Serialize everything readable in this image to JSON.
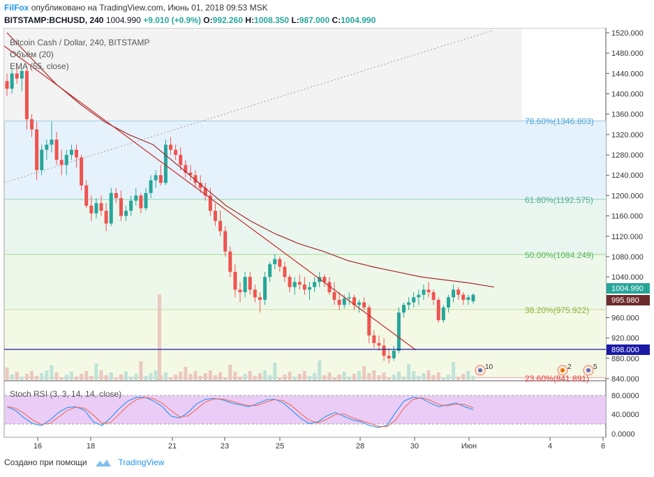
{
  "header": {
    "author": "FilFox",
    "published_text": "опубликовано на TradingView.com, Июнь 01, 2018 09:53 MSK",
    "symbol": "BITSTAMP:BCHUSD, 240",
    "last": "1004.990",
    "change": "+9.010 (+0.9%)",
    "o_label": "O:",
    "o_value": "992.260",
    "h_label": "H:",
    "h_value": "1008.350",
    "l_label": "L:",
    "l_value": "987.000",
    "c_label": "C:",
    "c_value": "1004.990"
  },
  "legend": {
    "title": "Bitcoin Cash / Dollar, 240, BITSTAMP",
    "volume": "Объём (20)",
    "ema": "EMA (55, close)"
  },
  "stoch": {
    "label": "Stoch RSI (3, 3, 14, 14, close)",
    "ticks": [
      "80.0000",
      "40.0000",
      "0.0000"
    ]
  },
  "fib_labels": [
    "78.60%(1346.803)",
    "61.80%(1192.575)",
    "50.00%(1084.249)",
    "38.20%(975.922)",
    "23.60%(841.891)"
  ],
  "price_ticks": [
    "1520.000",
    "1480.000",
    "1440.000",
    "1400.000",
    "1360.000",
    "1320.000",
    "1280.000",
    "1240.000",
    "1200.000",
    "1160.000",
    "1120.000",
    "1080.000",
    "1040.000",
    "960.000",
    "920.000",
    "880.000",
    "840.000"
  ],
  "price_badges": {
    "last": "1004.990",
    "ema": "995.980",
    "line": "898.000"
  },
  "x_ticks": [
    "16",
    "18",
    "21",
    "23",
    "25",
    "28",
    "30",
    "Июн",
    "4",
    "6"
  ],
  "event_badges": [
    "10",
    "2",
    "5"
  ],
  "footer": {
    "created": "Создано при помощи",
    "brand": "TradingView"
  },
  "colors": {
    "up": "#26a69a",
    "down": "#ef5350",
    "ema": "#a52a2a",
    "trend": "#c62828",
    "support": "#1a1aa6",
    "stoch_k": "#2196f3",
    "stoch_d": "#ef6c5a"
  },
  "chart_data": {
    "type": "candlestick",
    "title": "Bitcoin Cash / Dollar, 240, BITSTAMP",
    "symbol": "BITSTAMP:BCHUSD",
    "interval": "240",
    "ylim": [
      830,
      1530
    ],
    "fibonacci": [
      {
        "level": "78.60%",
        "price": 1346.803
      },
      {
        "level": "61.80%",
        "price": 1192.575
      },
      {
        "level": "50.00%",
        "price": 1084.249
      },
      {
        "level": "38.20%",
        "price": 975.922
      },
      {
        "level": "23.60%",
        "price": 841.891
      }
    ],
    "support_price": 898.0,
    "ema_last": 995.98,
    "last_ohlc": {
      "open": 992.26,
      "high": 1008.35,
      "low": 987.0,
      "close": 1004.99
    },
    "candles": [
      [
        1425,
        1440,
        1395,
        1410
      ],
      [
        1410,
        1450,
        1400,
        1440
      ],
      [
        1440,
        1452,
        1420,
        1430
      ],
      [
        1430,
        1450,
        1405,
        1445
      ],
      [
        1445,
        1450,
        1330,
        1350
      ],
      [
        1350,
        1360,
        1315,
        1330
      ],
      [
        1330,
        1345,
        1230,
        1250
      ],
      [
        1250,
        1300,
        1240,
        1290
      ],
      [
        1290,
        1310,
        1270,
        1300
      ],
      [
        1300,
        1345,
        1285,
        1310
      ],
      [
        1310,
        1325,
        1260,
        1270
      ],
      [
        1270,
        1290,
        1240,
        1260
      ],
      [
        1260,
        1290,
        1240,
        1280
      ],
      [
        1280,
        1300,
        1270,
        1290
      ],
      [
        1290,
        1300,
        1255,
        1275
      ],
      [
        1275,
        1280,
        1210,
        1220
      ],
      [
        1220,
        1230,
        1175,
        1180
      ],
      [
        1180,
        1200,
        1150,
        1165
      ],
      [
        1165,
        1195,
        1155,
        1185
      ],
      [
        1185,
        1200,
        1160,
        1170
      ],
      [
        1170,
        1185,
        1130,
        1145
      ],
      [
        1145,
        1215,
        1140,
        1205
      ],
      [
        1205,
        1215,
        1185,
        1195
      ],
      [
        1195,
        1210,
        1150,
        1160
      ],
      [
        1160,
        1180,
        1150,
        1170
      ],
      [
        1170,
        1200,
        1160,
        1190
      ],
      [
        1190,
        1215,
        1180,
        1200
      ],
      [
        1200,
        1205,
        1165,
        1175
      ],
      [
        1175,
        1215,
        1170,
        1205
      ],
      [
        1205,
        1240,
        1195,
        1230
      ],
      [
        1230,
        1250,
        1215,
        1240
      ],
      [
        1240,
        1260,
        1220,
        1225
      ],
      [
        1225,
        1310,
        1220,
        1300
      ],
      [
        1300,
        1315,
        1280,
        1290
      ],
      [
        1290,
        1300,
        1270,
        1280
      ],
      [
        1280,
        1295,
        1250,
        1260
      ],
      [
        1260,
        1270,
        1235,
        1245
      ],
      [
        1245,
        1260,
        1230,
        1240
      ],
      [
        1240,
        1250,
        1215,
        1225
      ],
      [
        1225,
        1240,
        1205,
        1215
      ],
      [
        1215,
        1225,
        1190,
        1200
      ],
      [
        1200,
        1215,
        1160,
        1170
      ],
      [
        1170,
        1185,
        1140,
        1150
      ],
      [
        1150,
        1170,
        1120,
        1130
      ],
      [
        1130,
        1140,
        1080,
        1090
      ],
      [
        1090,
        1100,
        1040,
        1050
      ],
      [
        1050,
        1065,
        1000,
        1015
      ],
      [
        1015,
        1030,
        990,
        1010
      ],
      [
        1010,
        1050,
        1000,
        1040
      ],
      [
        1040,
        1050,
        1005,
        1015
      ],
      [
        1015,
        1025,
        990,
        1000
      ],
      [
        1000,
        1010,
        970,
        995
      ],
      [
        995,
        1050,
        985,
        1040
      ],
      [
        1040,
        1070,
        1030,
        1065
      ],
      [
        1065,
        1085,
        1055,
        1075
      ],
      [
        1075,
        1080,
        1050,
        1060
      ],
      [
        1060,
        1070,
        1030,
        1040
      ],
      [
        1040,
        1045,
        1010,
        1020
      ],
      [
        1020,
        1040,
        1005,
        1030
      ],
      [
        1030,
        1045,
        1015,
        1025
      ],
      [
        1025,
        1040,
        1005,
        1015
      ],
      [
        1015,
        1030,
        995,
        1020
      ],
      [
        1020,
        1040,
        1010,
        1030
      ],
      [
        1030,
        1050,
        1020,
        1040
      ],
      [
        1040,
        1045,
        1020,
        1030
      ],
      [
        1030,
        1040,
        1005,
        1010
      ],
      [
        1010,
        1030,
        985,
        995
      ],
      [
        995,
        1010,
        975,
        985
      ],
      [
        985,
        1005,
        978,
        998
      ],
      [
        998,
        1010,
        985,
        1000
      ],
      [
        1000,
        1005,
        975,
        985
      ],
      [
        985,
        995,
        970,
        990
      ],
      [
        990,
        1000,
        975,
        980
      ],
      [
        980,
        985,
        910,
        925
      ],
      [
        925,
        935,
        900,
        910
      ],
      [
        910,
        925,
        895,
        905
      ],
      [
        905,
        920,
        875,
        885
      ],
      [
        885,
        900,
        870,
        880
      ],
      [
        880,
        905,
        875,
        895
      ],
      [
        895,
        980,
        890,
        970
      ],
      [
        970,
        990,
        960,
        985
      ],
      [
        985,
        1000,
        975,
        990
      ],
      [
        990,
        1010,
        980,
        1000
      ],
      [
        1000,
        1015,
        985,
        1005
      ],
      [
        1005,
        1025,
        995,
        1015
      ],
      [
        1015,
        1030,
        1000,
        1010
      ],
      [
        1010,
        1015,
        985,
        995
      ],
      [
        995,
        1000,
        950,
        955
      ],
      [
        955,
        985,
        950,
        980
      ],
      [
        980,
        1005,
        970,
        1000
      ],
      [
        1000,
        1025,
        990,
        1015
      ],
      [
        1015,
        1020,
        995,
        1005
      ],
      [
        1005,
        1010,
        985,
        995
      ],
      [
        995,
        1005,
        985,
        1000
      ],
      [
        992.26,
        1008.35,
        987.0,
        1004.99
      ]
    ]
  }
}
